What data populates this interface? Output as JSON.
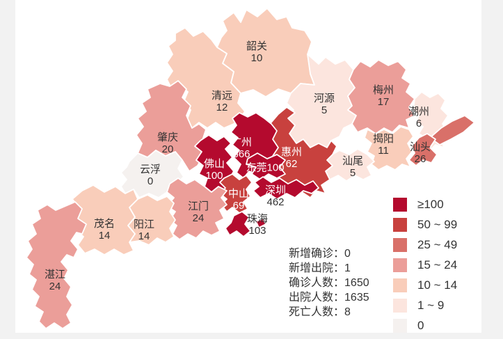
{
  "page": {
    "background": "#f2f2f2",
    "canvas_background": "#ffffff",
    "border_color": "#ffffff",
    "text_color": "#333333",
    "label_on_dark_color": "#ffffff"
  },
  "chart_data": {
    "type": "choropleth",
    "region": "广东省",
    "value_field": "确诊人数",
    "series": [
      {
        "name": "韶关",
        "value": 10
      },
      {
        "name": "清远",
        "value": 12
      },
      {
        "name": "河源",
        "value": 5
      },
      {
        "name": "梅州",
        "value": 17
      },
      {
        "name": "潮州",
        "value": 6
      },
      {
        "name": "揭阳",
        "value": 11
      },
      {
        "name": "汕头",
        "value": 26
      },
      {
        "name": "汕尾",
        "value": 5
      },
      {
        "name": "惠州",
        "value": 62
      },
      {
        "name": "广州",
        "value": 566
      },
      {
        "name": "肇庆",
        "value": 20
      },
      {
        "name": "云浮",
        "value": 0
      },
      {
        "name": "佛山",
        "value": 100
      },
      {
        "name": "东莞",
        "value": 100
      },
      {
        "name": "深圳",
        "value": 462
      },
      {
        "name": "中山",
        "value": 69
      },
      {
        "name": "珠海",
        "value": 103
      },
      {
        "name": "江门",
        "value": 24
      },
      {
        "name": "阳江",
        "value": 14
      },
      {
        "name": "茂名",
        "value": 14
      },
      {
        "name": "湛江",
        "value": 24
      }
    ],
    "legend_position": "bottom-right",
    "legend_buckets": [
      "≥100",
      "50 ~ 99",
      "25 ~ 49",
      "15 ~ 24",
      "10 ~ 14",
      "1 ~ 9",
      "0"
    ]
  },
  "legend": {
    "items": [
      {
        "bucket": "gte100",
        "label": "≥100",
        "color": "#b40a2e"
      },
      {
        "bucket": "50-99",
        "label": "50 ~ 99",
        "color": "#c8413e"
      },
      {
        "bucket": "25-49",
        "label": "25 ~ 49",
        "color": "#d97069"
      },
      {
        "bucket": "15-24",
        "label": "15 ~ 24",
        "color": "#eb9e99"
      },
      {
        "bucket": "10-14",
        "label": "10 ~ 14",
        "color": "#f9cdba"
      },
      {
        "bucket": "1-9",
        "label": "1 ~ 9",
        "color": "#fce5de"
      },
      {
        "bucket": "0",
        "label": "0",
        "color": "#f5f1ef"
      }
    ]
  },
  "stats": {
    "separator": "：",
    "lines": [
      {
        "label": "新增确诊",
        "value": "0"
      },
      {
        "label": "新增出院",
        "value": "1"
      },
      {
        "label": "确诊人数",
        "value": "1650"
      },
      {
        "label": "出院人数",
        "value": "1635"
      },
      {
        "label": "死亡人数",
        "value": "8"
      }
    ]
  },
  "map": {
    "cities": [
      {
        "id": "shaoguan",
        "name": "韶关",
        "value": "10",
        "bucket": "10-14"
      },
      {
        "id": "qingyuan",
        "name": "清远",
        "value": "12",
        "bucket": "10-14"
      },
      {
        "id": "heyuan",
        "name": "河源",
        "value": "5",
        "bucket": "1-9"
      },
      {
        "id": "meizhou",
        "name": "梅州",
        "value": "17",
        "bucket": "15-24"
      },
      {
        "id": "chaozhou",
        "name": "潮州",
        "value": "6",
        "bucket": "1-9"
      },
      {
        "id": "jieyang",
        "name": "揭阳",
        "value": "11",
        "bucket": "10-14"
      },
      {
        "id": "shantou",
        "name": "汕头",
        "value": "26",
        "bucket": "25-49"
      },
      {
        "id": "shanwei",
        "name": "汕尾",
        "value": "5",
        "bucket": "1-9"
      },
      {
        "id": "huizhou",
        "name": "惠州",
        "value": "62",
        "bucket": "50-99"
      },
      {
        "id": "guangzhou",
        "name": "广州",
        "value": "566",
        "bucket": "gte100"
      },
      {
        "id": "zhaoqing",
        "name": "肇庆",
        "value": "20",
        "bucket": "15-24"
      },
      {
        "id": "yunfu",
        "name": "云浮",
        "value": "0",
        "bucket": "0"
      },
      {
        "id": "foshan",
        "name": "佛山",
        "value": "100",
        "bucket": "gte100"
      },
      {
        "id": "dongguan",
        "name": "东莞",
        "value": "100",
        "bucket": "gte100"
      },
      {
        "id": "shenzhen",
        "name": "深圳",
        "value": "462",
        "bucket": "gte100"
      },
      {
        "id": "zhongshan",
        "name": "中山",
        "value": "69",
        "bucket": "50-99"
      },
      {
        "id": "zhuhai",
        "name": "珠海",
        "value": "103",
        "bucket": "gte100"
      },
      {
        "id": "jiangmen",
        "name": "江门",
        "value": "24",
        "bucket": "15-24"
      },
      {
        "id": "yangjiang",
        "name": "阳江",
        "value": "14",
        "bucket": "10-14"
      },
      {
        "id": "maoming",
        "name": "茂名",
        "value": "14",
        "bucket": "10-14"
      },
      {
        "id": "zhanjiang",
        "name": "湛江",
        "value": "24",
        "bucket": "15-24"
      }
    ]
  }
}
